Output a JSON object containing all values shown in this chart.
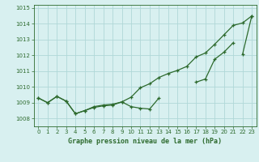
{
  "x": [
    0,
    1,
    2,
    3,
    4,
    5,
    6,
    7,
    8,
    9,
    10,
    11,
    12,
    13,
    14,
    15,
    16,
    17,
    18,
    19,
    20,
    21,
    22,
    23
  ],
  "line1": [
    1009.3,
    1009.0,
    1009.4,
    1009.1,
    1008.3,
    1008.5,
    1008.7,
    1008.8,
    1008.85,
    1009.05,
    1008.75,
    1008.65,
    1008.6,
    1009.3,
    null,
    null,
    null,
    null,
    null,
    null,
    null,
    null,
    null,
    null
  ],
  "line2": [
    1009.3,
    1009.0,
    1009.4,
    1009.1,
    1008.3,
    1008.5,
    1008.75,
    1008.85,
    1008.9,
    1009.05,
    1009.35,
    1009.95,
    1010.2,
    1010.6,
    1010.85,
    1011.05,
    1011.3,
    1011.9,
    1012.15,
    1012.7,
    1013.3,
    1013.9,
    1014.05,
    1014.5
  ],
  "line3": [
    null,
    null,
    null,
    null,
    null,
    null,
    null,
    null,
    null,
    null,
    null,
    null,
    null,
    null,
    null,
    null,
    null,
    1010.3,
    1010.5,
    1011.75,
    1012.2,
    1012.8,
    null,
    null
  ],
  "line4": [
    null,
    null,
    null,
    null,
    null,
    null,
    null,
    null,
    null,
    null,
    null,
    null,
    null,
    null,
    null,
    null,
    null,
    null,
    null,
    null,
    null,
    null,
    1012.05,
    1014.5
  ],
  "bg_color": "#d8f0f0",
  "grid_color": "#b0d8d8",
  "line_color": "#2d6a2d",
  "title": "Graphe pression niveau de la mer (hPa)",
  "ylim": [
    1007.5,
    1015.2
  ],
  "yticks": [
    1008,
    1009,
    1010,
    1011,
    1012,
    1013,
    1014,
    1015
  ],
  "xticks": [
    0,
    1,
    2,
    3,
    4,
    5,
    6,
    7,
    8,
    9,
    10,
    11,
    12,
    13,
    14,
    15,
    16,
    17,
    18,
    19,
    20,
    21,
    22,
    23
  ]
}
